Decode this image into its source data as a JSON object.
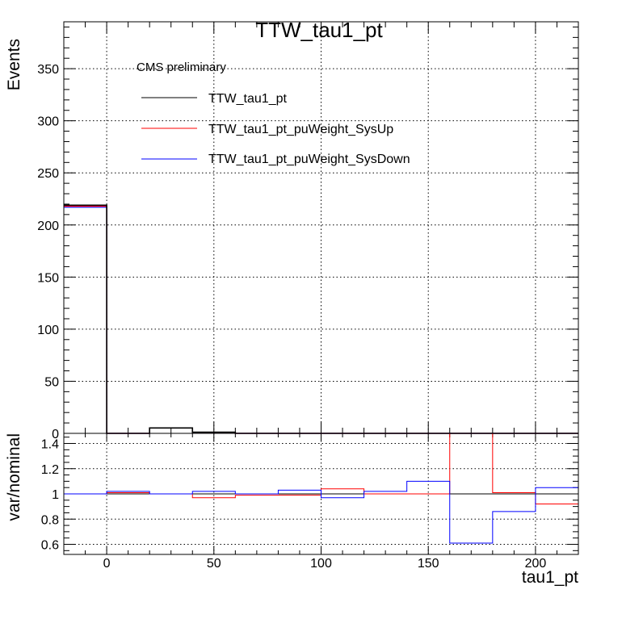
{
  "chart_data": [
    {
      "type": "line",
      "title": "TTW_tau1_pt",
      "ylabel": "Events",
      "xlabel": "",
      "xlim": [
        -20,
        220
      ],
      "ylim": [
        0,
        395
      ],
      "x_ticks": [
        0,
        50,
        100,
        150,
        200
      ],
      "y_ticks": [
        0,
        50,
        100,
        150,
        200,
        250,
        300,
        350
      ],
      "grid": true,
      "legend_header": "CMS preliminary",
      "legend_position": "top-left",
      "bin_edges": [
        -20,
        0,
        20,
        40,
        60,
        80,
        100,
        120,
        140,
        160,
        180,
        200,
        220
      ],
      "series": [
        {
          "name": "TTW_tau1_pt",
          "color": "#000000",
          "values": [
            219,
            0,
            5.2,
            1.1,
            0,
            0,
            0,
            0,
            0,
            0,
            0,
            0
          ]
        },
        {
          "name": "TTW_tau1_pt_puWeight_SysUp",
          "color": "#ff0000",
          "values": [
            218,
            0,
            5.2,
            1.1,
            0,
            0,
            0,
            0,
            0,
            0,
            0,
            0
          ]
        },
        {
          "name": "TTW_tau1_pt_puWeight_SysDown",
          "color": "#0000ff",
          "values": [
            217,
            0,
            5.1,
            1.1,
            0,
            0,
            0,
            0,
            0,
            0,
            0,
            0
          ]
        }
      ]
    },
    {
      "type": "line",
      "title": "",
      "ylabel": "var/nominal",
      "xlabel": "tau1_pt",
      "xlim": [
        -20,
        220
      ],
      "ylim": [
        0.52,
        1.48
      ],
      "x_ticks": [
        0,
        50,
        100,
        150,
        200
      ],
      "y_ticks": [
        0.6,
        0.8,
        1,
        1.2,
        1.4
      ],
      "reference_line": 1,
      "grid": true,
      "bin_edges": [
        -20,
        0,
        20,
        40,
        60,
        80,
        100,
        120,
        140,
        160,
        180,
        200,
        220
      ],
      "series": [
        {
          "name": "",
          "color": "#ff0000",
          "values": [
            1.0,
            1.01,
            1.0,
            0.97,
            0.99,
            0.99,
            1.04,
            1.0,
            1.0,
            1.5,
            1.01,
            0.92
          ]
        },
        {
          "name": "",
          "color": "#0000ff",
          "values": [
            1.0,
            1.02,
            1.0,
            1.02,
            1.0,
            1.03,
            0.97,
            1.02,
            1.1,
            0.61,
            0.86,
            1.05
          ]
        }
      ]
    }
  ]
}
